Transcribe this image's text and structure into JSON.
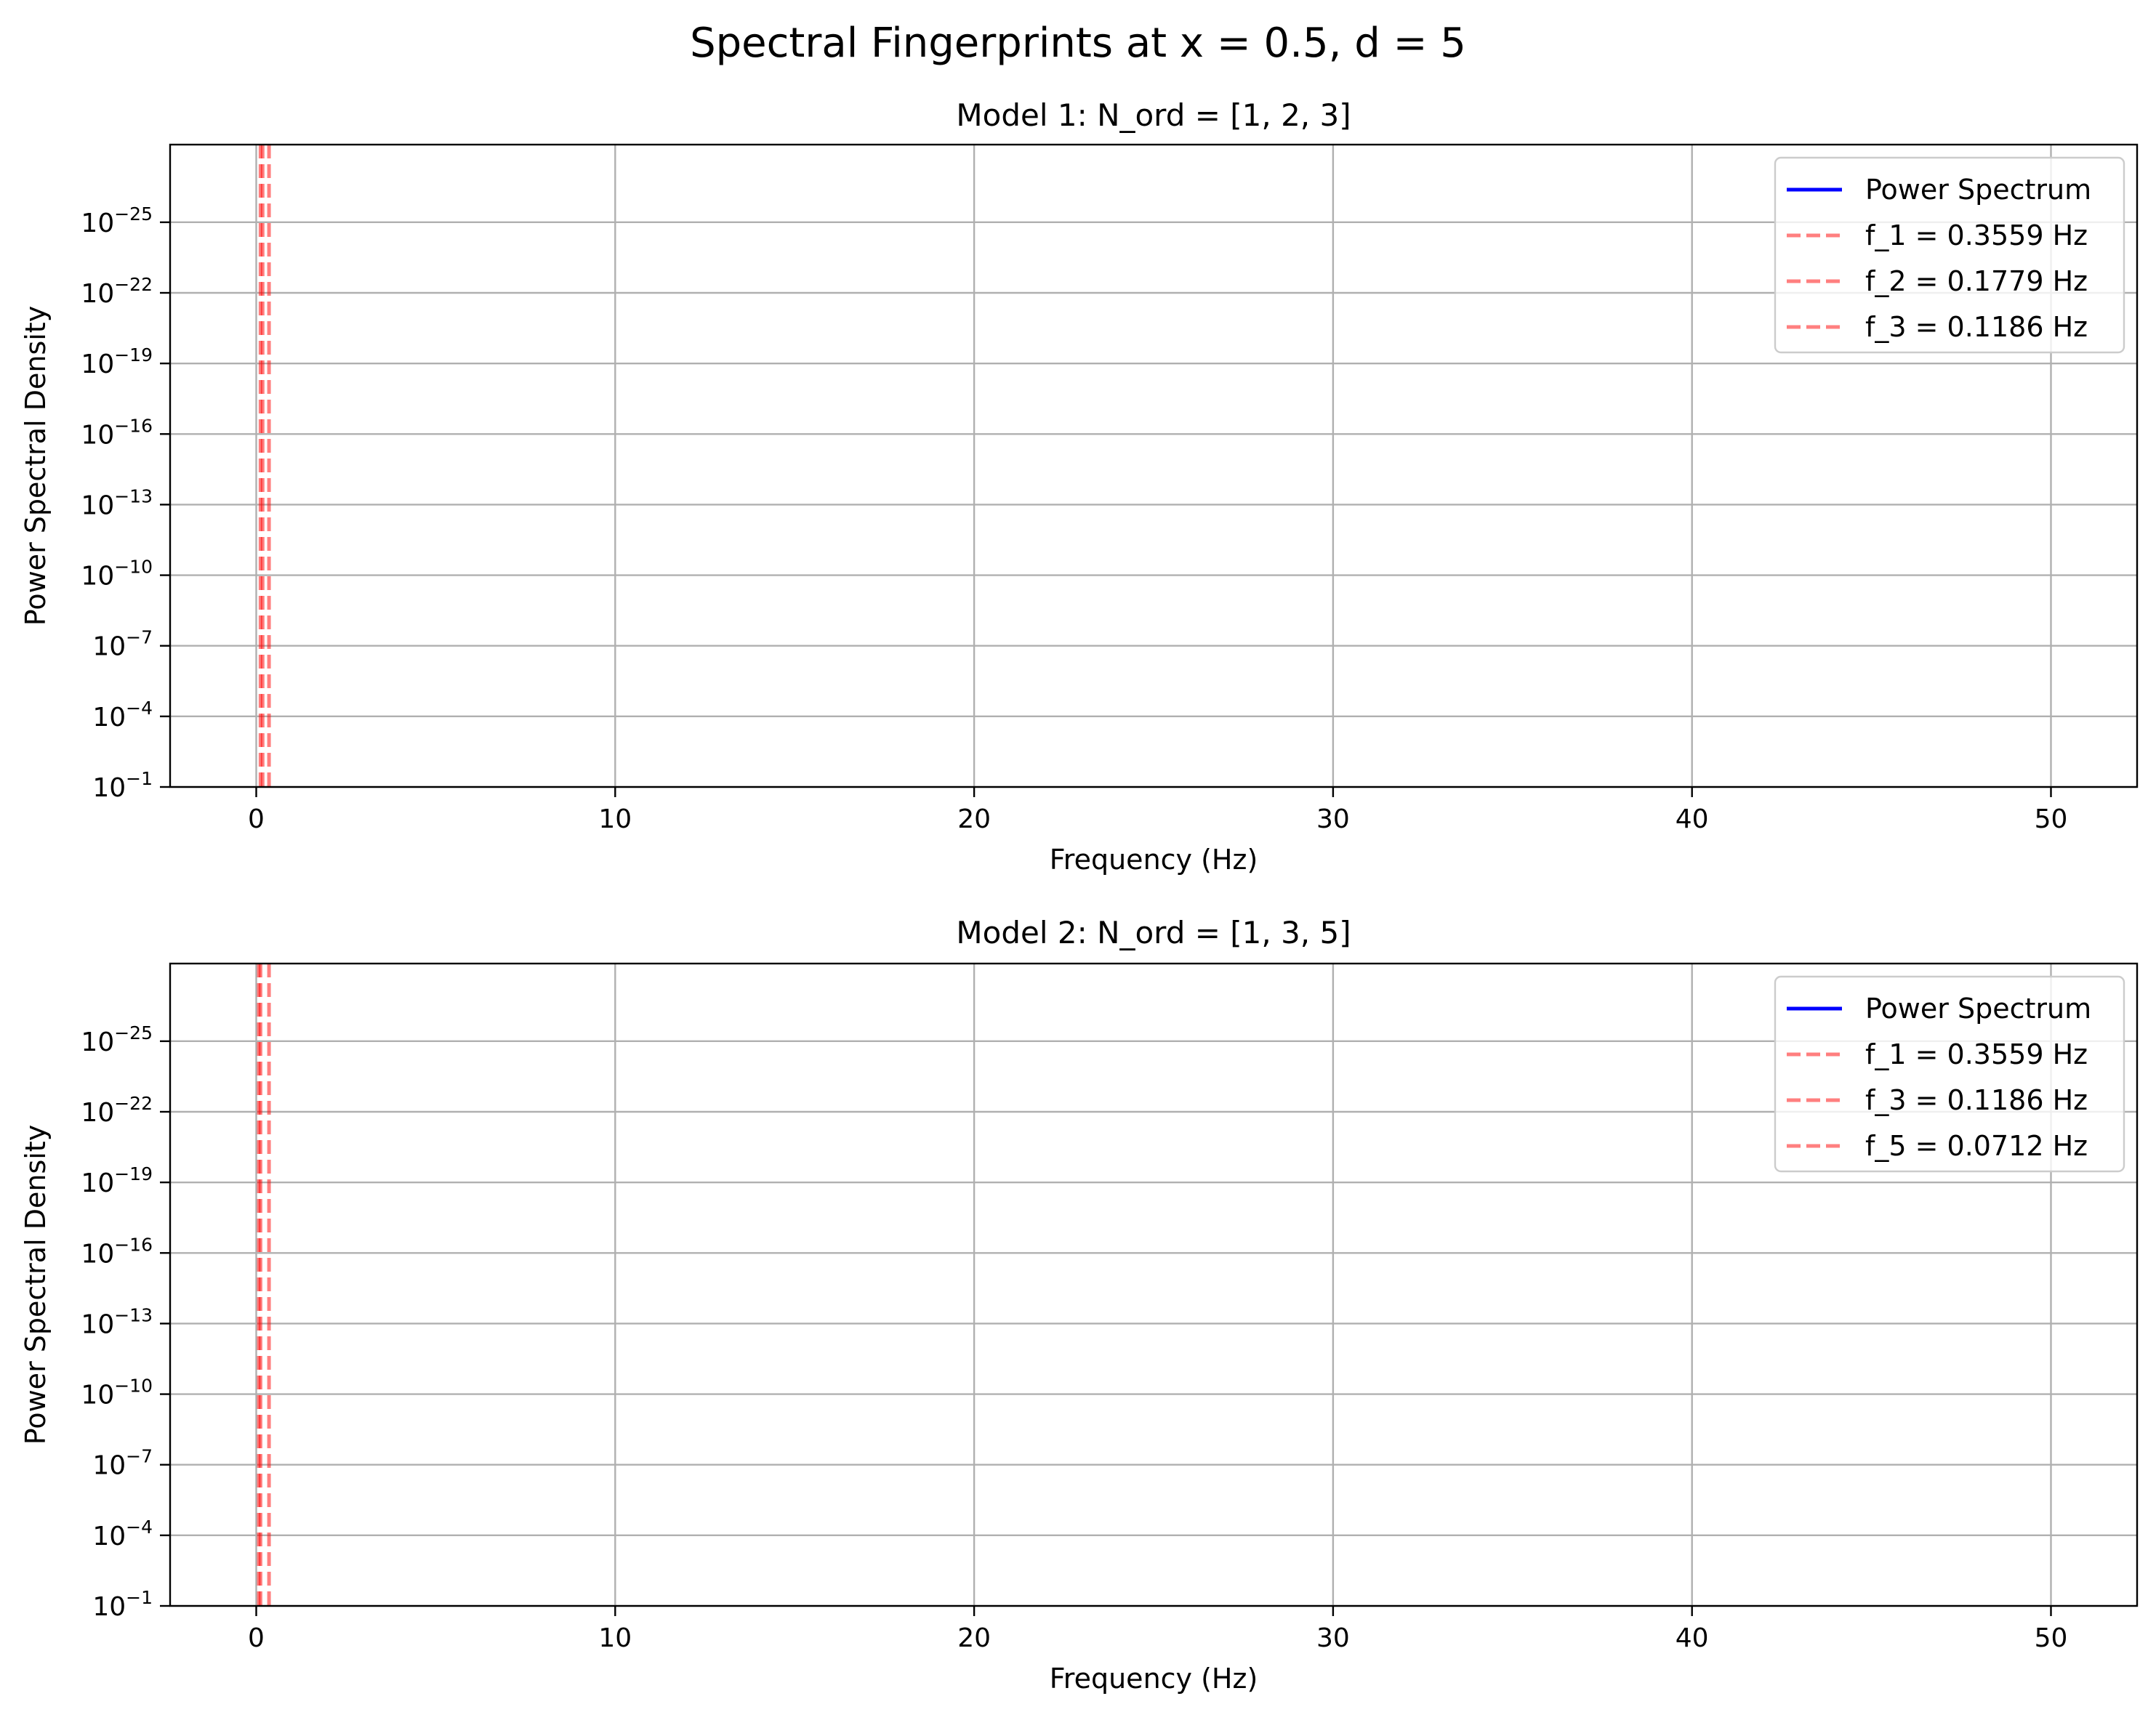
{
  "figure": {
    "title": "Spectral Fingerprints at x = 0.5, d = 5"
  },
  "colors": {
    "spectrum": "#0000ff",
    "marker": "#ff0000",
    "grid": "#b0b0b0",
    "axes": "#000000"
  },
  "chart_data": [
    {
      "type": "line",
      "title": "Model 1: N_ord = [1, 2, 3]",
      "xlabel": "Frequency (Hz)",
      "ylabel": "Power Spectral Density",
      "xlim": [
        -2.4,
        52.4
      ],
      "xticks": [
        0,
        10,
        20,
        30,
        40,
        50
      ],
      "xtick_labels": [
        "0",
        "10",
        "20",
        "30",
        "40",
        "50"
      ],
      "yscale": "log",
      "ylim_exp": [
        -1,
        -28.3
      ],
      "yticks_exp": [
        -1,
        -4,
        -7,
        -10,
        -13,
        -16,
        -19,
        -22,
        -25
      ],
      "ytick_labels": [
        {
          "base": "10",
          "exp": "−1"
        },
        {
          "base": "10",
          "exp": "−4"
        },
        {
          "base": "10",
          "exp": "−7"
        },
        {
          "base": "10",
          "exp": "−10"
        },
        {
          "base": "10",
          "exp": "−13"
        },
        {
          "base": "10",
          "exp": "−16"
        },
        {
          "base": "10",
          "exp": "−19"
        },
        {
          "base": "10",
          "exp": "−22"
        },
        {
          "base": "10",
          "exp": "−25"
        }
      ],
      "grid": true,
      "legend_position": "upper right",
      "series": [
        {
          "name": "Power Spectrum",
          "style": "solid",
          "x": [],
          "y": []
        }
      ],
      "markers": [
        {
          "name": "f_1 = 0.3559 Hz",
          "x": 0.3559,
          "style": "dashed"
        },
        {
          "name": "f_2 = 0.1779 Hz",
          "x": 0.1779,
          "style": "dashed"
        },
        {
          "name": "f_3 = 0.1186 Hz",
          "x": 0.1186,
          "style": "dashed"
        }
      ]
    },
    {
      "type": "line",
      "title": "Model 2: N_ord = [1, 3, 5]",
      "xlabel": "Frequency (Hz)",
      "ylabel": "Power Spectral Density",
      "xlim": [
        -2.4,
        52.4
      ],
      "xticks": [
        0,
        10,
        20,
        30,
        40,
        50
      ],
      "xtick_labels": [
        "0",
        "10",
        "20",
        "30",
        "40",
        "50"
      ],
      "yscale": "log",
      "ylim_exp": [
        -1,
        -28.3
      ],
      "yticks_exp": [
        -1,
        -4,
        -7,
        -10,
        -13,
        -16,
        -19,
        -22,
        -25
      ],
      "ytick_labels": [
        {
          "base": "10",
          "exp": "−1"
        },
        {
          "base": "10",
          "exp": "−4"
        },
        {
          "base": "10",
          "exp": "−7"
        },
        {
          "base": "10",
          "exp": "−10"
        },
        {
          "base": "10",
          "exp": "−13"
        },
        {
          "base": "10",
          "exp": "−16"
        },
        {
          "base": "10",
          "exp": "−19"
        },
        {
          "base": "10",
          "exp": "−22"
        },
        {
          "base": "10",
          "exp": "−25"
        }
      ],
      "grid": true,
      "legend_position": "upper right",
      "series": [
        {
          "name": "Power Spectrum",
          "style": "solid",
          "x": [],
          "y": []
        }
      ],
      "markers": [
        {
          "name": "f_1 = 0.3559 Hz",
          "x": 0.3559,
          "style": "dashed"
        },
        {
          "name": "f_3 = 0.1186 Hz",
          "x": 0.1186,
          "style": "dashed"
        },
        {
          "name": "f_5 = 0.0712 Hz",
          "x": 0.0712,
          "style": "dashed"
        }
      ]
    }
  ]
}
